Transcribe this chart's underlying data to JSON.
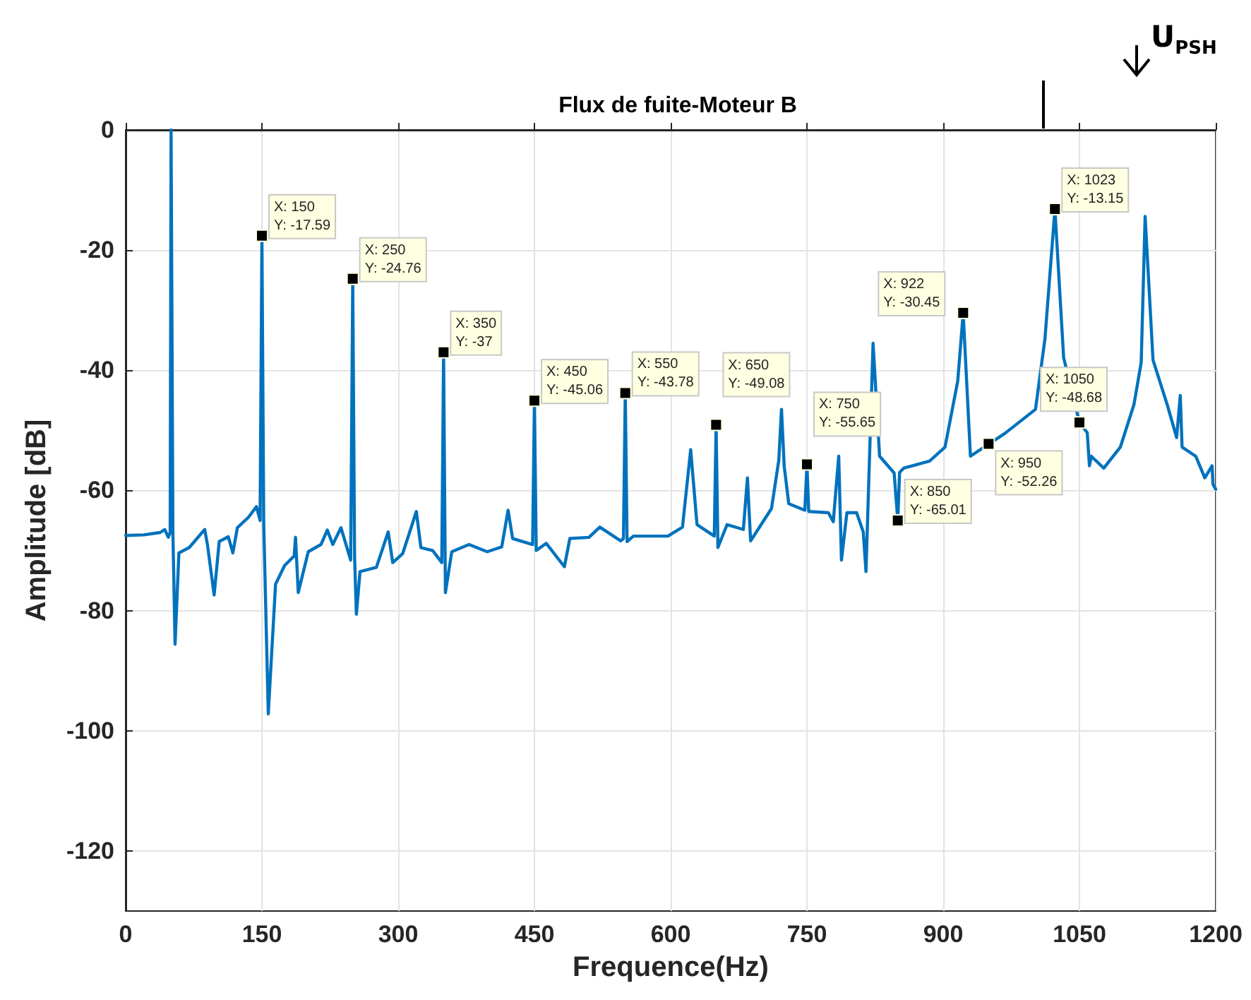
{
  "chart_data": {
    "type": "line",
    "title": "Flux de fuite-Moteur B",
    "xlabel": "Frequence(Hz)",
    "ylabel": "Amplitude [dB]",
    "x": [
      0,
      20,
      38,
      43,
      47,
      49,
      50,
      52,
      54.4,
      58.6,
      70,
      87,
      90,
      97.4,
      103,
      113,
      118,
      123,
      135,
      144,
      148,
      150,
      152,
      157,
      165,
      175,
      185.5,
      187,
      190,
      201,
      215,
      222,
      228,
      237,
      247.7,
      250,
      252,
      254,
      258,
      276,
      289,
      294,
      305,
      320,
      325,
      338,
      348,
      350,
      352,
      359,
      378,
      398,
      414,
      421,
      426,
      448,
      450,
      452,
      463,
      483,
      489,
      510,
      522,
      545,
      548,
      550,
      552,
      559,
      597,
      613,
      622,
      629,
      648,
      650,
      652,
      662,
      680,
      684.5,
      688,
      711,
      719,
      722,
      725,
      730,
      747.7,
      750,
      752,
      773.6,
      779,
      785,
      788,
      794,
      804.7,
      812,
      815,
      822.8,
      830,
      846,
      850,
      852,
      856.5,
      885,
      902,
      916,
      922,
      930,
      950,
      968,
      1001.6,
      1012,
      1023,
      1032.6,
      1050,
      1058.6,
      1061,
      1063,
      1076.8,
      1095,
      1110,
      1118,
      1122.3,
      1131,
      1146.6,
      1157,
      1161,
      1163,
      1178,
      1188,
      1196,
      1197,
      1200
    ],
    "series": [
      {
        "color": "#0072bd",
        "values": [
          -67.5,
          -67.4,
          -67,
          -66.5,
          -67.8,
          -67,
          0,
          -67,
          -85.6,
          -70.4,
          -69.5,
          -66.5,
          -69,
          -77.4,
          -68.5,
          -67.7,
          -70.4,
          -66.2,
          -64.5,
          -62.7,
          -65,
          -17.6,
          -65.5,
          -97.2,
          -75.6,
          -72.5,
          -70.9,
          -67.8,
          -77,
          -70.2,
          -69,
          -66.6,
          -69,
          -66.2,
          -71.6,
          -24.8,
          -71,
          -80.6,
          -73.5,
          -72.8,
          -66.9,
          -72,
          -70.5,
          -63.5,
          -69.5,
          -70,
          -72,
          -37,
          -77,
          -70.2,
          -69,
          -70.2,
          -69.4,
          -63.3,
          -68,
          -69,
          -45.1,
          -70,
          -68.8,
          -72.7,
          -68,
          -67.8,
          -66.1,
          -68.4,
          -68,
          -43.8,
          -68.5,
          -67.6,
          -67.6,
          -66.1,
          -53.2,
          -65.7,
          -67.6,
          -49.1,
          -69.5,
          -65.7,
          -66.5,
          -57.9,
          -68.4,
          -63,
          -55,
          -46.5,
          -56,
          -62.2,
          -63.3,
          -55.7,
          -63.5,
          -63.7,
          -65.2,
          -54.3,
          -71.6,
          -63.7,
          -63.7,
          -66.9,
          -73.5,
          -35.5,
          -54.3,
          -57.1,
          -65,
          -57,
          -56.3,
          -55.1,
          -52.8,
          -41.8,
          -30.5,
          -54.3,
          -52.3,
          -50.5,
          -46.5,
          -34.8,
          -13.2,
          -37.9,
          -48.7,
          -50.4,
          -55.9,
          -54.3,
          -56.3,
          -52.8,
          -45.7,
          -38.7,
          -14.4,
          -38.3,
          -45.7,
          -51.2,
          -44.2,
          -52.8,
          -54.3,
          -57.9,
          -55.9,
          -59,
          -59.8
        ]
      }
    ],
    "xlim": [
      0,
      1200
    ],
    "xticks": [
      0,
      150,
      300,
      450,
      600,
      750,
      900,
      1050,
      1200
    ],
    "ylim": [
      -130,
      0
    ],
    "yticks": [
      -120,
      -100,
      -80,
      -60,
      -40,
      -20,
      0
    ],
    "grid": true,
    "marker": "none",
    "line_style": "solid",
    "annotations": [
      {
        "text": "X: 150\nY: -17.59",
        "x": 150,
        "y": -17.59
      },
      {
        "text": "X: 250\nY: -24.76",
        "x": 250,
        "y": -24.76
      },
      {
        "text": "X: 350\nY: -37",
        "x": 350,
        "y": -37
      },
      {
        "text": "X: 450\nY: -45.06",
        "x": 450,
        "y": -45.06
      },
      {
        "text": "X: 550\nY: -43.78",
        "x": 550,
        "y": -43.78
      },
      {
        "text": "X: 650\nY: -49.08",
        "x": 650,
        "y": -49.08
      },
      {
        "text": "X: 750\nY: -55.65",
        "x": 750,
        "y": -55.65
      },
      {
        "text": "X: 850\nY: -65.01",
        "x": 850,
        "y": -65.01
      },
      {
        "text": "X: 922\nY: -30.45",
        "x": 922,
        "y": -30.45
      },
      {
        "text": "X: 950\nY: -52.26",
        "x": 950,
        "y": -52.26
      },
      {
        "text": "X: 1023\nY: -13.15",
        "x": 1023,
        "y": -13.15
      },
      {
        "text": "X: 1050\nY: -48.68",
        "x": 1050,
        "y": -48.68
      },
      "U$_{PSH}$"
    ]
  }
}
